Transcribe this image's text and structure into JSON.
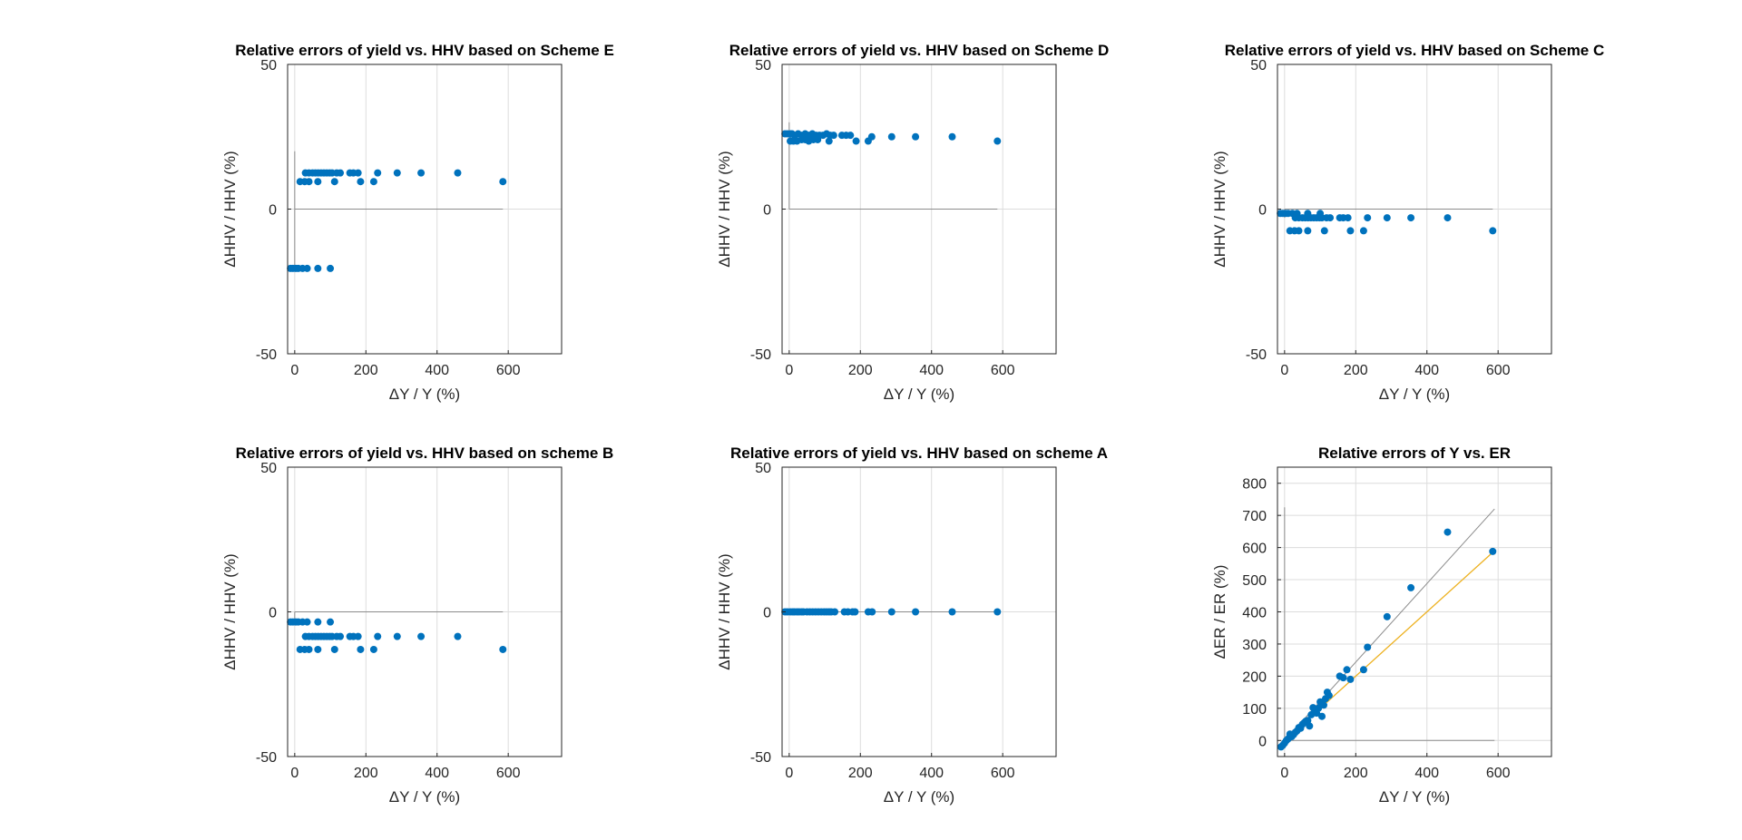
{
  "figure": {
    "marker_color": "#0072BD",
    "fit_color": "#EDB120",
    "ref_color": "#8C8C8C",
    "grid_color": "#DCDCDC"
  },
  "chart_data": [
    {
      "type": "scatter",
      "title": "Relative errors of yield vs. HHV based on Scheme E",
      "xlabel": "ΔY / Y (%)",
      "ylabel": "ΔHHV / HHV  (%)",
      "xlim": [
        -20,
        750
      ],
      "ylim": [
        -50,
        50
      ],
      "xticks": [
        0,
        200,
        400,
        600
      ],
      "yticks": [
        -50,
        0,
        50
      ],
      "grid": true,
      "legend": "none",
      "series": [
        {
          "points": [
            [
              -12,
              -20.5
            ],
            [
              -5,
              -20.5
            ],
            [
              3,
              -20.5
            ],
            [
              10,
              -20.5
            ],
            [
              22,
              -20.5
            ],
            [
              35,
              -20.5
            ],
            [
              65,
              -20.5
            ],
            [
              100,
              -20.5
            ],
            [
              15,
              9.5
            ],
            [
              28,
              9.5
            ],
            [
              40,
              9.5
            ],
            [
              65,
              9.5
            ],
            [
              112,
              9.5
            ],
            [
              185,
              9.5
            ],
            [
              222,
              9.5
            ],
            [
              585,
              9.5
            ],
            [
              30,
              12.5
            ],
            [
              40,
              12.5
            ],
            [
              50,
              12.5
            ],
            [
              58,
              12.5
            ],
            [
              66,
              12.5
            ],
            [
              74,
              12.5
            ],
            [
              82,
              12.5
            ],
            [
              90,
              12.5
            ],
            [
              98,
              12.5
            ],
            [
              105,
              12.5
            ],
            [
              118,
              12.5
            ],
            [
              128,
              12.5
            ],
            [
              155,
              12.5
            ],
            [
              165,
              12.5
            ],
            [
              178,
              12.5
            ],
            [
              233,
              12.5
            ],
            [
              288,
              12.5
            ],
            [
              355,
              12.5
            ],
            [
              458,
              12.5
            ]
          ]
        }
      ],
      "refs": [
        {
          "orientation": "horizontal",
          "y": 0,
          "x_range": [
            0,
            585
          ]
        },
        {
          "orientation": "vertical",
          "x": 0,
          "y_range": [
            -21,
            20
          ]
        }
      ]
    },
    {
      "type": "scatter",
      "title": "Relative errors of yield vs. HHV based on Scheme D",
      "xlabel": "ΔY / Y (%)",
      "ylabel": "ΔHHV / HHV  (%)",
      "xlim": [
        -20,
        750
      ],
      "ylim": [
        -50,
        50
      ],
      "xticks": [
        0,
        200,
        400,
        600
      ],
      "yticks": [
        -50,
        0,
        50
      ],
      "grid": true,
      "legend": "none",
      "series": [
        {
          "points": [
            [
              -12,
              26
            ],
            [
              -5,
              26
            ],
            [
              3,
              26
            ],
            [
              8,
              26
            ],
            [
              15,
              25.5
            ],
            [
              25,
              26
            ],
            [
              35,
              25.5
            ],
            [
              45,
              26
            ],
            [
              55,
              25.5
            ],
            [
              65,
              26
            ],
            [
              75,
              25.5
            ],
            [
              85,
              25.5
            ],
            [
              95,
              25.5
            ],
            [
              105,
              26
            ],
            [
              115,
              25.5
            ],
            [
              125,
              25.5
            ],
            [
              148,
              25.5
            ],
            [
              160,
              25.5
            ],
            [
              172,
              25.5
            ],
            [
              232,
              25
            ],
            [
              288,
              25
            ],
            [
              355,
              25
            ],
            [
              458,
              25
            ],
            [
              3,
              23.5
            ],
            [
              12,
              23.5
            ],
            [
              22,
              23.5
            ],
            [
              35,
              24
            ],
            [
              45,
              24
            ],
            [
              55,
              23.5
            ],
            [
              68,
              24
            ],
            [
              80,
              24
            ],
            [
              112,
              23.5
            ],
            [
              188,
              23.5
            ],
            [
              222,
              23.5
            ],
            [
              585,
              23.5
            ]
          ]
        }
      ],
      "refs": [
        {
          "orientation": "horizontal",
          "y": 0,
          "x_range": [
            0,
            585
          ]
        },
        {
          "orientation": "vertical",
          "x": 0,
          "y_range": [
            0,
            30
          ]
        }
      ]
    },
    {
      "type": "scatter",
      "title": "Relative errors of yield vs. HHV based on Scheme C",
      "xlabel": "ΔY / Y (%)",
      "ylabel": "ΔHHV / HHV  (%)",
      "xlim": [
        -20,
        750
      ],
      "ylim": [
        -50,
        50
      ],
      "xticks": [
        0,
        200,
        400,
        600
      ],
      "yticks": [
        -50,
        0,
        50
      ],
      "grid": true,
      "legend": "none",
      "series": [
        {
          "points": [
            [
              -12,
              -1.5
            ],
            [
              -5,
              -1.5
            ],
            [
              3,
              -1.5
            ],
            [
              10,
              -1.5
            ],
            [
              22,
              -1.5
            ],
            [
              35,
              -1.5
            ],
            [
              65,
              -1.5
            ],
            [
              100,
              -1.5
            ],
            [
              30,
              -3
            ],
            [
              40,
              -3
            ],
            [
              50,
              -3
            ],
            [
              58,
              -3
            ],
            [
              66,
              -3
            ],
            [
              74,
              -3
            ],
            [
              82,
              -3
            ],
            [
              90,
              -3
            ],
            [
              98,
              -3
            ],
            [
              105,
              -3
            ],
            [
              118,
              -3
            ],
            [
              128,
              -3
            ],
            [
              155,
              -3
            ],
            [
              165,
              -3
            ],
            [
              178,
              -3
            ],
            [
              233,
              -3
            ],
            [
              288,
              -3
            ],
            [
              355,
              -3
            ],
            [
              458,
              -3
            ],
            [
              15,
              -7.5
            ],
            [
              28,
              -7.5
            ],
            [
              40,
              -7.5
            ],
            [
              65,
              -7.5
            ],
            [
              112,
              -7.5
            ],
            [
              185,
              -7.5
            ],
            [
              222,
              -7.5
            ],
            [
              585,
              -7.5
            ]
          ]
        }
      ],
      "refs": [
        {
          "orientation": "horizontal",
          "y": 0,
          "x_range": [
            0,
            585
          ]
        },
        {
          "orientation": "vertical",
          "x": 0,
          "y_range": [
            -3,
            0
          ]
        }
      ]
    },
    {
      "type": "scatter",
      "title": "Relative errors of yield vs. HHV based on scheme B",
      "xlabel": "ΔY / Y (%)",
      "ylabel": "ΔHHV / HHV  (%)",
      "xlim": [
        -20,
        750
      ],
      "ylim": [
        -50,
        50
      ],
      "xticks": [
        0,
        200,
        400,
        600
      ],
      "yticks": [
        -50,
        0,
        50
      ],
      "grid": true,
      "legend": "none",
      "series": [
        {
          "points": [
            [
              -12,
              -3.5
            ],
            [
              -5,
              -3.5
            ],
            [
              3,
              -3.5
            ],
            [
              10,
              -3.5
            ],
            [
              22,
              -3.5
            ],
            [
              35,
              -3.5
            ],
            [
              65,
              -3.5
            ],
            [
              100,
              -3.5
            ],
            [
              30,
              -8.5
            ],
            [
              40,
              -8.5
            ],
            [
              50,
              -8.5
            ],
            [
              58,
              -8.5
            ],
            [
              66,
              -8.5
            ],
            [
              74,
              -8.5
            ],
            [
              82,
              -8.5
            ],
            [
              90,
              -8.5
            ],
            [
              98,
              -8.5
            ],
            [
              105,
              -8.5
            ],
            [
              118,
              -8.5
            ],
            [
              128,
              -8.5
            ],
            [
              155,
              -8.5
            ],
            [
              165,
              -8.5
            ],
            [
              178,
              -8.5
            ],
            [
              233,
              -8.5
            ],
            [
              288,
              -8.5
            ],
            [
              355,
              -8.5
            ],
            [
              458,
              -8.5
            ],
            [
              15,
              -13
            ],
            [
              28,
              -13
            ],
            [
              40,
              -13
            ],
            [
              65,
              -13
            ],
            [
              112,
              -13
            ],
            [
              185,
              -13
            ],
            [
              222,
              -13
            ],
            [
              585,
              -13
            ]
          ]
        }
      ],
      "refs": [
        {
          "orientation": "horizontal",
          "y": 0,
          "x_range": [
            0,
            585
          ]
        },
        {
          "orientation": "vertical",
          "x": 0,
          "y_range": [
            -3,
            0
          ]
        }
      ]
    },
    {
      "type": "scatter",
      "title": "Relative errors of yield vs. HHV based on scheme A",
      "xlabel": "ΔY / Y (%)",
      "ylabel": "ΔHHV / HHV  (%)",
      "xlim": [
        -20,
        750
      ],
      "ylim": [
        -50,
        50
      ],
      "xticks": [
        0,
        200,
        400,
        600
      ],
      "yticks": [
        -50,
        0,
        50
      ],
      "grid": true,
      "legend": "none",
      "series": [
        {
          "points": [
            [
              -12,
              0
            ],
            [
              -5,
              0
            ],
            [
              3,
              0
            ],
            [
              10,
              0
            ],
            [
              15,
              0
            ],
            [
              22,
              0
            ],
            [
              28,
              0
            ],
            [
              35,
              0
            ],
            [
              40,
              0
            ],
            [
              50,
              0
            ],
            [
              58,
              0
            ],
            [
              66,
              0
            ],
            [
              74,
              0
            ],
            [
              82,
              0
            ],
            [
              90,
              0
            ],
            [
              98,
              0
            ],
            [
              105,
              0
            ],
            [
              112,
              0
            ],
            [
              118,
              0
            ],
            [
              128,
              0
            ],
            [
              155,
              0
            ],
            [
              165,
              0
            ],
            [
              178,
              0
            ],
            [
              185,
              0
            ],
            [
              222,
              0
            ],
            [
              233,
              0
            ],
            [
              288,
              0
            ],
            [
              355,
              0
            ],
            [
              458,
              0
            ],
            [
              585,
              0
            ]
          ]
        }
      ],
      "refs": [
        {
          "orientation": "horizontal",
          "y": 0,
          "x_range": [
            0,
            585
          ]
        }
      ]
    },
    {
      "type": "scatter",
      "title": "Relative errors of Y vs. ER",
      "xlabel": "ΔY / Y (%)",
      "ylabel": "ΔER / ER (%)",
      "xlim": [
        -20,
        750
      ],
      "ylim": [
        -50,
        850
      ],
      "xticks": [
        0,
        200,
        400,
        600
      ],
      "yticks": [
        0,
        100,
        200,
        300,
        400,
        500,
        600,
        700,
        800
      ],
      "grid": true,
      "legend": "none",
      "series": [
        {
          "points": [
            [
              -10,
              -20
            ],
            [
              -5,
              -15
            ],
            [
              0,
              -8
            ],
            [
              5,
              0
            ],
            [
              10,
              5
            ],
            [
              15,
              20
            ],
            [
              20,
              12
            ],
            [
              25,
              18
            ],
            [
              30,
              25
            ],
            [
              35,
              30
            ],
            [
              40,
              40
            ],
            [
              45,
              38
            ],
            [
              50,
              50
            ],
            [
              55,
              55
            ],
            [
              60,
              60
            ],
            [
              65,
              62
            ],
            [
              70,
              45
            ],
            [
              75,
              80
            ],
            [
              80,
              102
            ],
            [
              85,
              90
            ],
            [
              90,
              85
            ],
            [
              95,
              100
            ],
            [
              100,
              120
            ],
            [
              105,
              75
            ],
            [
              110,
              110
            ],
            [
              115,
              130
            ],
            [
              120,
              150
            ],
            [
              125,
              140
            ],
            [
              155,
              200
            ],
            [
              165,
              195
            ],
            [
              175,
              220
            ],
            [
              185,
              190
            ],
            [
              222,
              220
            ],
            [
              233,
              290
            ],
            [
              288,
              385
            ],
            [
              355,
              475
            ],
            [
              458,
              648
            ],
            [
              585,
              588
            ]
          ]
        }
      ],
      "refs": [
        {
          "orientation": "horizontal",
          "y": 0,
          "x_range": [
            0,
            590
          ]
        },
        {
          "orientation": "vertical",
          "x": 0,
          "y_range": [
            -25,
            725
          ]
        },
        {
          "orientation": "diagonal",
          "from": [
            -20,
            -25
          ],
          "to": [
            590,
            720
          ]
        }
      ],
      "fit": {
        "from": [
          -20,
          -20
        ],
        "to": [
          590,
          590
        ]
      }
    }
  ]
}
